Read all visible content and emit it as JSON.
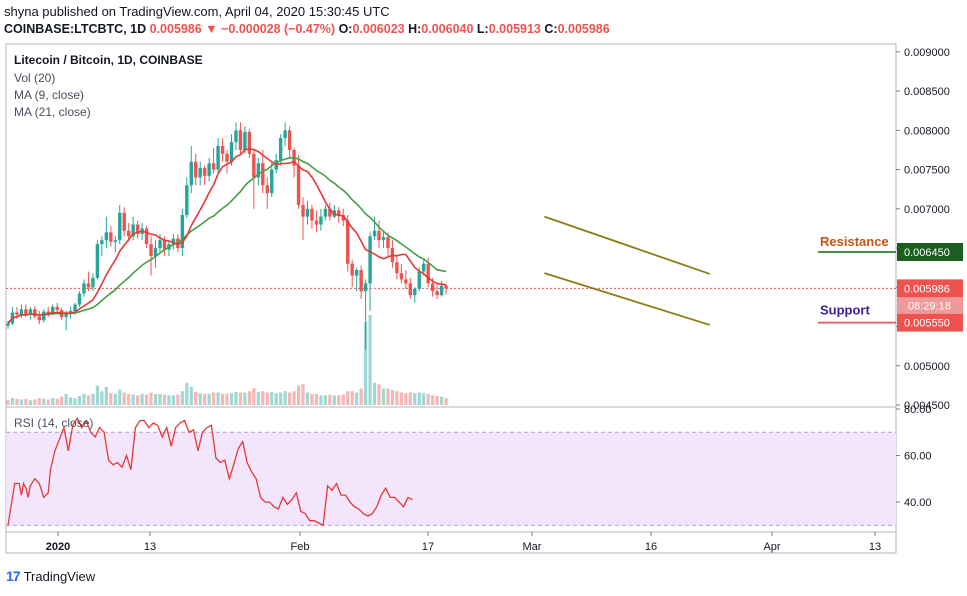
{
  "header": {
    "published": "shyna published on TradingView.com, April 04, 2020 15:30:45 UTC",
    "symbol": "COINBASE:LTCBTC, 1D",
    "last": "0.005986",
    "arrow": "▼",
    "change": "−0.000028 (−0.47%)",
    "o_label": "O:",
    "o": "0.006023",
    "h_label": "H:",
    "h": "0.006040",
    "l_label": "L:",
    "l": "0.005913",
    "c_label": "C:",
    "c": "0.005986"
  },
  "legend": {
    "title": "Litecoin / Bitcoin, 1D, COINBASE",
    "vol": "Vol (20)",
    "ma9": "MA (9, close)",
    "ma21": "MA (21, close)",
    "rsi": "RSI (14, close)"
  },
  "footer": {
    "brand": "TradingView",
    "logo_mark": "17"
  },
  "colors": {
    "up": "#26a69a",
    "down": "#ef5350",
    "ma9": "#e53935",
    "ma21": "#43a047",
    "trendline": "#8b7d1a",
    "resistance": "#c0561a",
    "support": "#3d1f94",
    "resistance_tag": "#1b5e20",
    "rsi_line": "#e53935",
    "rsi_band": "#f3e5fb"
  },
  "chart_data": {
    "type": "candlestick",
    "title": "Litecoin / Bitcoin, 1D, COINBASE",
    "ylim": [
      0.0045,
      0.0091
    ],
    "y_ticks": [
      "0.009000",
      "0.008500",
      "0.008000",
      "0.007500",
      "0.007000",
      "0.006500",
      "0.006000",
      "0.005500",
      "0.005000",
      "0.004500"
    ],
    "x_ticks": [
      "2020",
      "13",
      "Feb",
      "17",
      "Mar",
      "16",
      "Apr",
      "13"
    ],
    "price_labels": {
      "resistance_value": "0.006450",
      "last_price": "0.005986",
      "countdown": "08:29:18",
      "support_value": "0.005550"
    },
    "annotations": {
      "resistance": "Resistance",
      "support": "Support"
    },
    "candles": [
      [
        0.00551,
        0.00557,
        0.00547,
        0.00554
      ],
      [
        0.00554,
        0.00575,
        0.00552,
        0.00568
      ],
      [
        0.00568,
        0.00575,
        0.0056,
        0.00565
      ],
      [
        0.00565,
        0.00578,
        0.00561,
        0.00572
      ],
      [
        0.00572,
        0.00578,
        0.00562,
        0.00565
      ],
      [
        0.00565,
        0.00575,
        0.00559,
        0.00572
      ],
      [
        0.00572,
        0.00576,
        0.0056,
        0.00563
      ],
      [
        0.00563,
        0.0057,
        0.00553,
        0.00558
      ],
      [
        0.00558,
        0.00572,
        0.00555,
        0.00569
      ],
      [
        0.00569,
        0.00575,
        0.00562,
        0.00567
      ],
      [
        0.00567,
        0.00578,
        0.00565,
        0.00575
      ],
      [
        0.00575,
        0.0058,
        0.00566,
        0.00571
      ],
      [
        0.00571,
        0.00574,
        0.00558,
        0.00562
      ],
      [
        0.00562,
        0.0057,
        0.00545,
        0.00567
      ],
      [
        0.00567,
        0.00575,
        0.0056,
        0.0057
      ],
      [
        0.0057,
        0.0058,
        0.00565,
        0.00578
      ],
      [
        0.00578,
        0.00595,
        0.00575,
        0.00592
      ],
      [
        0.00592,
        0.0061,
        0.00588,
        0.00605
      ],
      [
        0.00605,
        0.0062,
        0.00595,
        0.006
      ],
      [
        0.006,
        0.00618,
        0.00595,
        0.00612
      ],
      [
        0.00612,
        0.0066,
        0.0061,
        0.00655
      ],
      [
        0.00655,
        0.00665,
        0.0064,
        0.0066
      ],
      [
        0.0066,
        0.0069,
        0.0065,
        0.0067
      ],
      [
        0.0067,
        0.00678,
        0.00652,
        0.00658
      ],
      [
        0.00658,
        0.00665,
        0.00645,
        0.0066
      ],
      [
        0.0066,
        0.00705,
        0.00655,
        0.00695
      ],
      [
        0.00695,
        0.00702,
        0.00665,
        0.00672
      ],
      [
        0.00672,
        0.00682,
        0.00658,
        0.00665
      ],
      [
        0.00665,
        0.0069,
        0.0066,
        0.0068
      ],
      [
        0.0068,
        0.00685,
        0.00662,
        0.00668
      ],
      [
        0.00668,
        0.00682,
        0.0066,
        0.00675
      ],
      [
        0.00675,
        0.00678,
        0.0065,
        0.00655
      ],
      [
        0.00655,
        0.00665,
        0.00615,
        0.0064
      ],
      [
        0.0064,
        0.0066,
        0.00625,
        0.0065
      ],
      [
        0.0065,
        0.00668,
        0.00645,
        0.0066
      ],
      [
        0.0066,
        0.00665,
        0.0064,
        0.00648
      ],
      [
        0.00648,
        0.0066,
        0.0064,
        0.00655
      ],
      [
        0.00655,
        0.00668,
        0.00648,
        0.00662
      ],
      [
        0.00662,
        0.00668,
        0.00645,
        0.0065
      ],
      [
        0.0065,
        0.007,
        0.0064,
        0.00692
      ],
      [
        0.00692,
        0.0074,
        0.00688,
        0.0073
      ],
      [
        0.0073,
        0.0078,
        0.0072,
        0.0076
      ],
      [
        0.0076,
        0.0077,
        0.0073,
        0.0074
      ],
      [
        0.0074,
        0.0076,
        0.0073,
        0.00752
      ],
      [
        0.00752,
        0.00755,
        0.0073,
        0.00742
      ],
      [
        0.00742,
        0.00765,
        0.00735,
        0.00758
      ],
      [
        0.00758,
        0.00778,
        0.00745,
        0.0075
      ],
      [
        0.0075,
        0.0079,
        0.00745,
        0.0078
      ],
      [
        0.0078,
        0.0079,
        0.0076,
        0.0077
      ],
      [
        0.0077,
        0.00775,
        0.00745,
        0.0076
      ],
      [
        0.0076,
        0.00795,
        0.00755,
        0.00785
      ],
      [
        0.00785,
        0.0081,
        0.00775,
        0.008
      ],
      [
        0.008,
        0.0081,
        0.0077,
        0.00775
      ],
      [
        0.00775,
        0.00805,
        0.0077,
        0.00798
      ],
      [
        0.00798,
        0.00802,
        0.00765,
        0.0077
      ],
      [
        0.0077,
        0.00775,
        0.007,
        0.0074
      ],
      [
        0.0074,
        0.00765,
        0.0073,
        0.00758
      ],
      [
        0.00758,
        0.00775,
        0.0072,
        0.0073
      ],
      [
        0.0073,
        0.0074,
        0.007,
        0.0072
      ],
      [
        0.0072,
        0.0076,
        0.00715,
        0.0075
      ],
      [
        0.0075,
        0.0077,
        0.00745,
        0.00762
      ],
      [
        0.00762,
        0.00795,
        0.00755,
        0.0079
      ],
      [
        0.0079,
        0.0081,
        0.0078,
        0.008
      ],
      [
        0.008,
        0.00805,
        0.00765,
        0.00775
      ],
      [
        0.00775,
        0.00778,
        0.0074,
        0.00755
      ],
      [
        0.00755,
        0.00768,
        0.007,
        0.00705
      ],
      [
        0.00705,
        0.00715,
        0.0066,
        0.0069
      ],
      [
        0.0069,
        0.0071,
        0.0068,
        0.007
      ],
      [
        0.007,
        0.00705,
        0.00675,
        0.00685
      ],
      [
        0.00685,
        0.00698,
        0.0067,
        0.0068
      ],
      [
        0.0068,
        0.007,
        0.00672,
        0.0069
      ],
      [
        0.0069,
        0.00705,
        0.00685,
        0.007
      ],
      [
        0.007,
        0.00708,
        0.00685,
        0.0069
      ],
      [
        0.0069,
        0.00705,
        0.00688,
        0.00698
      ],
      [
        0.00698,
        0.00702,
        0.00682,
        0.00692
      ],
      [
        0.00692,
        0.007,
        0.00678,
        0.00685
      ],
      [
        0.00685,
        0.00692,
        0.0062,
        0.0063
      ],
      [
        0.0063,
        0.00635,
        0.006,
        0.00615
      ],
      [
        0.00615,
        0.00625,
        0.00595,
        0.00622
      ],
      [
        0.00622,
        0.00628,
        0.00585,
        0.00595
      ],
      [
        0.00595,
        0.0061,
        0.0052,
        0.00605
      ],
      [
        0.00605,
        0.0067,
        0.0057,
        0.00665
      ],
      [
        0.00665,
        0.0069,
        0.0066,
        0.00672
      ],
      [
        0.00672,
        0.00685,
        0.0065,
        0.0066
      ],
      [
        0.0066,
        0.0067,
        0.0065,
        0.00664
      ],
      [
        0.00664,
        0.0067,
        0.0064,
        0.0065
      ],
      [
        0.0065,
        0.0066,
        0.00625,
        0.00632
      ],
      [
        0.00632,
        0.0064,
        0.0061,
        0.00618
      ],
      [
        0.00618,
        0.0063,
        0.00605,
        0.0061
      ],
      [
        0.0061,
        0.00622,
        0.00598,
        0.00605
      ],
      [
        0.00605,
        0.00612,
        0.00585,
        0.0059
      ],
      [
        0.0059,
        0.006,
        0.0058,
        0.00598
      ],
      [
        0.00598,
        0.00625,
        0.00595,
        0.0062
      ],
      [
        0.0062,
        0.00635,
        0.00615,
        0.0063
      ],
      [
        0.0063,
        0.00638,
        0.006,
        0.00605
      ],
      [
        0.00605,
        0.00612,
        0.00588,
        0.00595
      ],
      [
        0.00595,
        0.00605,
        0.00585,
        0.0059
      ],
      [
        0.0059,
        0.00608,
        0.00588,
        0.00602
      ],
      [
        0.00602,
        0.00604,
        0.00591,
        0.005986
      ]
    ],
    "volume": [
      [
        0.35,
        "d"
      ],
      [
        0.5,
        "u"
      ],
      [
        0.45,
        "d"
      ],
      [
        0.4,
        "u"
      ],
      [
        0.45,
        "d"
      ],
      [
        0.35,
        "u"
      ],
      [
        0.4,
        "d"
      ],
      [
        0.5,
        "d"
      ],
      [
        0.45,
        "u"
      ],
      [
        0.4,
        "d"
      ],
      [
        0.5,
        "u"
      ],
      [
        0.45,
        "d"
      ],
      [
        0.6,
        "d"
      ],
      [
        0.8,
        "u"
      ],
      [
        0.55,
        "u"
      ],
      [
        0.5,
        "u"
      ],
      [
        0.65,
        "u"
      ],
      [
        0.8,
        "u"
      ],
      [
        0.7,
        "d"
      ],
      [
        0.8,
        "u"
      ],
      [
        1.4,
        "u"
      ],
      [
        1.0,
        "u"
      ],
      [
        1.3,
        "u"
      ],
      [
        0.85,
        "d"
      ],
      [
        0.8,
        "u"
      ],
      [
        1.1,
        "u"
      ],
      [
        0.9,
        "d"
      ],
      [
        0.8,
        "d"
      ],
      [
        0.75,
        "u"
      ],
      [
        0.7,
        "d"
      ],
      [
        0.8,
        "u"
      ],
      [
        0.75,
        "d"
      ],
      [
        0.9,
        "d"
      ],
      [
        0.8,
        "u"
      ],
      [
        0.8,
        "u"
      ],
      [
        0.75,
        "d"
      ],
      [
        0.7,
        "u"
      ],
      [
        0.7,
        "u"
      ],
      [
        0.75,
        "d"
      ],
      [
        1.0,
        "u"
      ],
      [
        1.6,
        "u"
      ],
      [
        1.3,
        "u"
      ],
      [
        0.95,
        "d"
      ],
      [
        0.85,
        "u"
      ],
      [
        0.8,
        "d"
      ],
      [
        0.8,
        "u"
      ],
      [
        0.9,
        "d"
      ],
      [
        0.9,
        "u"
      ],
      [
        0.8,
        "d"
      ],
      [
        0.8,
        "d"
      ],
      [
        0.85,
        "u"
      ],
      [
        0.95,
        "u"
      ],
      [
        0.9,
        "d"
      ],
      [
        0.9,
        "u"
      ],
      [
        1.0,
        "d"
      ],
      [
        1.2,
        "d"
      ],
      [
        0.95,
        "u"
      ],
      [
        1.0,
        "d"
      ],
      [
        0.9,
        "d"
      ],
      [
        0.95,
        "u"
      ],
      [
        0.85,
        "u"
      ],
      [
        0.9,
        "u"
      ],
      [
        1.0,
        "u"
      ],
      [
        0.9,
        "d"
      ],
      [
        1.0,
        "d"
      ],
      [
        1.4,
        "d"
      ],
      [
        1.5,
        "d"
      ],
      [
        0.9,
        "u"
      ],
      [
        0.8,
        "d"
      ],
      [
        0.8,
        "d"
      ],
      [
        0.7,
        "u"
      ],
      [
        0.7,
        "u"
      ],
      [
        0.75,
        "d"
      ],
      [
        0.7,
        "u"
      ],
      [
        0.7,
        "d"
      ],
      [
        0.75,
        "d"
      ],
      [
        1.0,
        "d"
      ],
      [
        1.0,
        "d"
      ],
      [
        0.9,
        "u"
      ],
      [
        1.2,
        "d"
      ],
      [
        6.0,
        "u"
      ],
      [
        6.5,
        "u"
      ],
      [
        1.6,
        "u"
      ],
      [
        1.5,
        "d"
      ],
      [
        1.2,
        "u"
      ],
      [
        1.2,
        "d"
      ],
      [
        1.1,
        "d"
      ],
      [
        1.0,
        "d"
      ],
      [
        0.9,
        "d"
      ],
      [
        0.85,
        "d"
      ],
      [
        0.9,
        "d"
      ],
      [
        0.85,
        "u"
      ],
      [
        0.9,
        "u"
      ],
      [
        0.85,
        "u"
      ],
      [
        0.8,
        "d"
      ],
      [
        0.7,
        "d"
      ],
      [
        0.65,
        "d"
      ],
      [
        0.6,
        "u"
      ],
      [
        0.5,
        "d"
      ]
    ],
    "rsi": {
      "ylim": [
        28,
        80
      ],
      "ticks": [
        "80.00",
        "60.00",
        "40.00"
      ],
      "band": [
        30,
        70
      ],
      "series": [
        [
          0,
          30
        ],
        [
          3,
          48
        ],
        [
          5,
          48
        ],
        [
          6,
          43
        ],
        [
          7,
          48
        ],
        [
          8,
          46
        ],
        [
          9,
          42
        ],
        [
          10,
          47
        ],
        [
          12,
          50
        ],
        [
          14,
          48
        ],
        [
          16,
          42
        ],
        [
          18,
          44
        ],
        [
          19,
          54
        ],
        [
          21,
          62
        ],
        [
          23,
          67
        ],
        [
          25,
          72
        ],
        [
          27,
          62
        ],
        [
          29,
          73
        ],
        [
          31,
          76
        ],
        [
          33,
          72
        ],
        [
          35,
          75
        ],
        [
          37,
          70
        ],
        [
          39,
          68
        ],
        [
          41,
          72
        ],
        [
          43,
          70
        ],
        [
          45,
          58
        ],
        [
          47,
          56
        ],
        [
          49,
          57
        ],
        [
          51,
          55
        ],
        [
          53,
          60
        ],
        [
          55,
          54
        ],
        [
          57,
          72
        ],
        [
          59,
          75
        ],
        [
          61,
          75
        ],
        [
          63,
          72
        ],
        [
          65,
          74
        ],
        [
          67,
          73
        ],
        [
          69,
          68
        ],
        [
          71,
          72
        ],
        [
          73,
          64
        ],
        [
          75,
          72
        ],
        [
          77,
          74
        ],
        [
          79,
          75
        ],
        [
          81,
          70
        ],
        [
          83,
          71
        ],
        [
          85,
          62
        ],
        [
          87,
          70
        ],
        [
          89,
          72
        ],
        [
          91,
          73
        ],
        [
          93,
          59
        ],
        [
          95,
          57
        ],
        [
          97,
          58
        ],
        [
          99,
          50
        ],
        [
          101,
          56
        ],
        [
          103,
          63
        ],
        [
          105,
          66
        ],
        [
          107,
          57
        ],
        [
          109,
          53
        ],
        [
          111,
          50
        ],
        [
          113,
          42
        ],
        [
          115,
          40
        ],
        [
          117,
          40
        ],
        [
          119,
          38
        ],
        [
          121,
          37
        ],
        [
          123,
          42
        ],
        [
          125,
          39
        ],
        [
          127,
          41
        ],
        [
          129,
          44
        ],
        [
          131,
          36
        ],
        [
          133,
          35
        ],
        [
          135,
          32
        ],
        [
          137,
          32
        ],
        [
          139,
          31
        ],
        [
          141,
          30
        ],
        [
          143,
          47
        ],
        [
          145,
          45
        ],
        [
          147,
          48
        ],
        [
          149,
          43
        ],
        [
          151,
          43
        ],
        [
          153,
          40
        ],
        [
          155,
          38
        ],
        [
          157,
          37
        ],
        [
          159,
          35
        ],
        [
          161,
          34
        ],
        [
          163,
          35
        ],
        [
          165,
          38
        ],
        [
          167,
          43
        ],
        [
          169,
          46
        ],
        [
          171,
          42
        ],
        [
          173,
          42
        ],
        [
          175,
          40
        ],
        [
          177,
          38
        ],
        [
          179,
          42
        ],
        [
          181,
          41
        ]
      ]
    },
    "trendlines": {
      "upper": [
        [
          120,
          0.0069
        ],
        [
          157,
          0.00617
        ]
      ],
      "lower": [
        [
          120,
          0.00618
        ],
        [
          157,
          0.00552
        ]
      ]
    }
  }
}
